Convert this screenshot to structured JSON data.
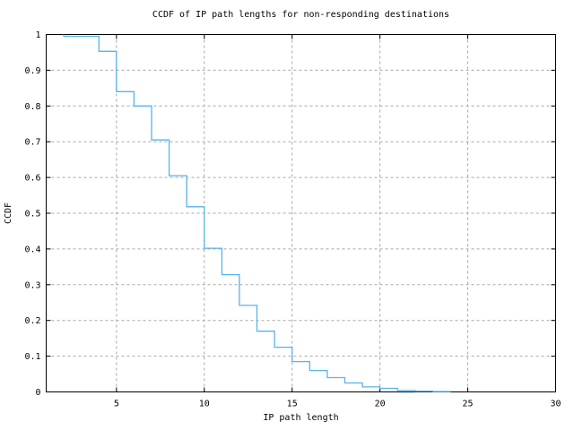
{
  "chart_data": {
    "type": "line-step",
    "title": "CCDF of IP path lengths for non-responding destinations",
    "xlabel": "IP path length",
    "ylabel": "CCDF",
    "xlim": [
      1,
      30
    ],
    "ylim": [
      0,
      1
    ],
    "xticks": {
      "values": [
        5,
        10,
        15,
        20,
        25,
        30
      ],
      "labels": [
        "5",
        "10",
        "15",
        "20",
        "25",
        "30"
      ]
    },
    "yticks": {
      "values": [
        0,
        0.1,
        0.2,
        0.3,
        0.4,
        0.5,
        0.6,
        0.7,
        0.8,
        0.9,
        1
      ],
      "labels": [
        "0",
        "0.1",
        "0.2",
        "0.3",
        "0.4",
        "0.5",
        "0.6",
        "0.7",
        "0.8",
        "0.9",
        "1"
      ]
    },
    "grid": true,
    "legend": "none",
    "series": [
      {
        "name": "CCDF of IP path lengths",
        "color": "#56b4e9",
        "step_mode": "post",
        "points": [
          [
            2,
            1.0
          ],
          [
            2,
            0.995
          ],
          [
            4,
            0.953
          ],
          [
            5,
            0.84
          ],
          [
            6,
            0.8
          ],
          [
            7,
            0.705
          ],
          [
            8,
            0.605
          ],
          [
            9,
            0.518
          ],
          [
            10,
            0.402
          ],
          [
            11,
            0.328
          ],
          [
            12,
            0.242
          ],
          [
            13,
            0.17
          ],
          [
            14,
            0.125
          ],
          [
            15,
            0.085
          ],
          [
            16,
            0.06
          ],
          [
            17,
            0.04
          ],
          [
            18,
            0.025
          ],
          [
            19,
            0.014
          ],
          [
            20,
            0.01
          ],
          [
            21,
            0.004
          ],
          [
            22,
            0.002
          ],
          [
            23,
            0.001
          ],
          [
            24,
            0.0
          ]
        ]
      }
    ]
  },
  "colors": {
    "curve": "#56b4e9",
    "grid": "#a8a8a8",
    "border": "#000000",
    "text": "#000000",
    "background": "#ffffff"
  }
}
